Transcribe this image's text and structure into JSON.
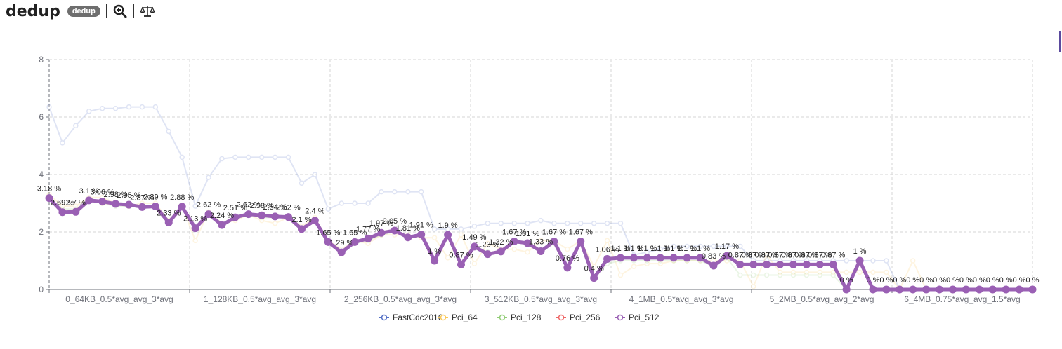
{
  "header": {
    "title": "dedup",
    "badge": "dedup",
    "zoom_icon": "zoom-in-icon",
    "compare_icon": "balance-scale-icon"
  },
  "chart_data": {
    "type": "line",
    "title": "",
    "xlabel": "",
    "ylabel": "",
    "ylim": [
      0,
      8
    ],
    "yticks": [
      0,
      2,
      4,
      6,
      8
    ],
    "grid": true,
    "legend_position": "bottom-center",
    "x_group_labels": [
      "0_64KB_0.5*avg_avg_3*avg",
      "1_128KB_0.5*avg_avg_3*avg",
      "2_256KB_0.5*avg_avg_3*avg",
      "3_512KB_0.5*avg_avg_3*avg",
      "4_1MB_0.5*avg_avg_3*avg",
      "5_2MB_0.5*avg_avg_2*avg",
      "6_4MB_0.75*avg_avg_1.5*avg"
    ],
    "series": [
      {
        "name": "FastCdc2016",
        "color": "#5470c6",
        "emphasis": false,
        "values": [
          6.35,
          5.1,
          5.7,
          6.2,
          6.3,
          6.3,
          6.35,
          6.35,
          6.35,
          5.5,
          4.6,
          2.9,
          3.9,
          4.55,
          4.6,
          4.6,
          4.6,
          4.6,
          4.6,
          3.7,
          4.0,
          2.8,
          3.0,
          3.0,
          3.0,
          3.4,
          3.4,
          3.4,
          3.4,
          2.1,
          2.1,
          2.1,
          2.2,
          2.3,
          2.3,
          2.3,
          2.3,
          2.4,
          2.3,
          2.3,
          2.3,
          2.3,
          2.3,
          2.3,
          1.2,
          1.3,
          1.4,
          1.5,
          1.5,
          1.5,
          1.5,
          1.5,
          1.5,
          1.0,
          1.0,
          1.0,
          1.0,
          1.0,
          1.0,
          1.0,
          1.0,
          1.0,
          1.0,
          1.0,
          0.0,
          0.0,
          0.0,
          0.0,
          0.0,
          0.0,
          0.0,
          0.0,
          0.0,
          0.0,
          0.0
        ]
      },
      {
        "name": "Pci_64",
        "color": "#fac858",
        "emphasis": false,
        "values": [
          3.3,
          2.9,
          2.9,
          3.2,
          3.2,
          3.0,
          2.9,
          3.0,
          3.0,
          2.4,
          2.9,
          1.7,
          2.7,
          2.3,
          2.4,
          2.6,
          2.4,
          2.3,
          2.5,
          2.2,
          2.5,
          1.7,
          1.4,
          1.7,
          1.6,
          1.9,
          1.9,
          1.9,
          1.8,
          1.8,
          1.1,
          1.9,
          0.9,
          1.6,
          1.4,
          1.4,
          1.3,
          1.7,
          1.7,
          1.4,
          1.7,
          0.8,
          1.7,
          0.5,
          0.8,
          0.9,
          0.9,
          1.0,
          1.0,
          1.0,
          1.0,
          1.0,
          1.0,
          0.1,
          1.2,
          0.6,
          0.6,
          0.6,
          0.6,
          0.6,
          0.6,
          0.6,
          0.6,
          0.6,
          0.0,
          1.0,
          0.0,
          0.0,
          0.0,
          0.0,
          0.0,
          0.0,
          0.0,
          0.0,
          0.0
        ]
      },
      {
        "name": "Pci_128",
        "color": "#91cc75",
        "emphasis": false,
        "values": [
          3.2,
          2.8,
          2.8,
          3.1,
          3.0,
          2.9,
          2.9,
          2.9,
          2.9,
          2.3,
          2.9,
          2.1,
          2.6,
          2.2,
          2.5,
          2.6,
          2.5,
          2.5,
          2.5,
          2.1,
          2.4,
          1.65,
          1.3,
          1.6,
          1.7,
          1.9,
          2.0,
          1.8,
          1.9,
          1.0,
          1.9,
          0.9,
          1.5,
          1.3,
          1.3,
          1.7,
          1.6,
          1.4,
          1.6,
          0.8,
          1.6,
          0.4,
          0.9,
          1.0,
          1.0,
          1.0,
          1.0,
          1.0,
          1.0,
          1.0,
          0.8,
          1.1,
          0.5,
          0.5,
          0.5,
          0.5,
          0.5,
          0.5,
          0.5,
          0.5,
          0.0,
          1.0,
          0.0,
          0.0,
          0.0,
          0.0,
          0.0,
          0.0,
          0.0,
          0.0,
          0.0,
          0.0,
          0.0,
          0.0,
          0.0
        ]
      },
      {
        "name": "Pci_256",
        "color": "#ee6666",
        "emphasis": false,
        "values": [
          3.2,
          2.7,
          2.7,
          3.1,
          3.0,
          2.95,
          2.9,
          2.85,
          2.85,
          2.3,
          2.9,
          2.1,
          2.6,
          2.2,
          2.5,
          2.6,
          2.55,
          2.5,
          2.5,
          2.1,
          2.4,
          1.65,
          1.3,
          1.65,
          1.8,
          1.95,
          2.05,
          1.8,
          1.9,
          1.0,
          1.9,
          0.87,
          1.5,
          1.2,
          1.3,
          1.67,
          1.6,
          1.33,
          1.67,
          0.76,
          1.67,
          0.4,
          1.06,
          1.1,
          1.1,
          1.1,
          1.1,
          1.1,
          1.1,
          1.1,
          0.83,
          1.17,
          0.87,
          0.87,
          0.87,
          0.87,
          0.87,
          0.87,
          0.87,
          0.87,
          0.0,
          1.0,
          0.0,
          0.0,
          0.0,
          0.0,
          0.0,
          0.0,
          0.0,
          0.0,
          0.0,
          0.0,
          0.0,
          0.0,
          0.0
        ]
      },
      {
        "name": "Pci_512",
        "color": "#9a60b4",
        "emphasis": true,
        "values": [
          3.18,
          2.69,
          2.7,
          3.1,
          3.06,
          2.98,
          2.95,
          2.87,
          2.89,
          2.33,
          2.88,
          2.13,
          2.62,
          2.24,
          2.51,
          2.62,
          2.58,
          2.54,
          2.52,
          2.1,
          2.4,
          1.65,
          1.29,
          1.65,
          1.77,
          1.97,
          2.05,
          1.81,
          1.91,
          1.0,
          1.9,
          0.87,
          1.49,
          1.23,
          1.32,
          1.67,
          1.61,
          1.33,
          1.67,
          0.76,
          1.67,
          0.4,
          1.06,
          1.1,
          1.1,
          1.1,
          1.1,
          1.1,
          1.1,
          1.1,
          0.83,
          1.17,
          0.87,
          0.87,
          0.87,
          0.87,
          0.87,
          0.87,
          0.87,
          0.87,
          0.0,
          1.0,
          0.0,
          0.0,
          0.0,
          0.0,
          0.0,
          0.0,
          0.0,
          0.0,
          0.0,
          0.0,
          0.0,
          0.0,
          0.0
        ],
        "labels": [
          "3.18 %",
          "2.69 %",
          "2.7 %",
          "3.1 %",
          "3.06 %",
          "2.98 %",
          "2.95 %",
          "2.87 %",
          "2.89 %",
          "2.33 %",
          "2.88 %",
          "2.13 %",
          "2.62 %",
          "2.24 %",
          "2.51 %",
          "2.62 %",
          "2.58 %",
          "2.54 %",
          "2.52 %",
          "2.1 %",
          "2.4 %",
          "1.65 %",
          "1.29 %",
          "1.65 %",
          "1.77 %",
          "1.97 %",
          "2.05 %",
          "1.81 %",
          "1.91 %",
          "1 %",
          "1.9 %",
          "0.87 %",
          "1.49 %",
          "1.23 %",
          "1.32 %",
          "1.67 %",
          "1.61 %",
          "1.33 %",
          "1.67 %",
          "0.76 %",
          "1.67 %",
          "0.4 %",
          "1.06 %",
          "1.1 %",
          "1.1 %",
          "1.1 %",
          "1.1 %",
          "1.1 %",
          "1.1 %",
          "1.1 %",
          "0.83 %",
          "1.17 %",
          "0.87 %",
          "0.87 %",
          "0.87 %",
          "0.87 %",
          "0.87 %",
          "0.87 %",
          "0.87 %",
          "0.87 %",
          "0 %",
          "1 %",
          "0 %",
          "0 %",
          "0 %",
          "0 %",
          "0 %",
          "0 %",
          "0 %",
          "0 %",
          "0 %",
          "0 %",
          "0 %",
          "0 %",
          "0 %"
        ]
      }
    ]
  }
}
